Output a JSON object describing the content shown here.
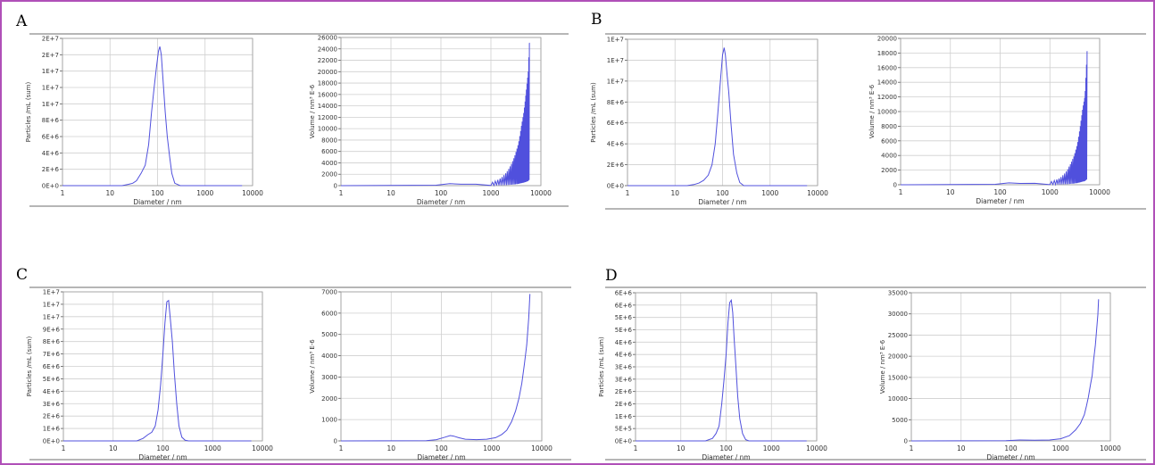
{
  "colors": {
    "frame": "#b050b8",
    "line": "#5050dd",
    "grid": "#cfcfcf",
    "rule": "#8a8a8a"
  },
  "panels": [
    {
      "letter": "A",
      "charts": [
        0,
        1
      ]
    },
    {
      "letter": "B",
      "charts": [
        2,
        3
      ]
    },
    {
      "letter": "C",
      "charts": [
        4,
        5
      ]
    },
    {
      "letter": "D",
      "charts": [
        6,
        7
      ]
    }
  ],
  "chart_data": [
    {
      "type": "line",
      "panel": "A",
      "xscale": "log",
      "xlabel": "Diameter / nm",
      "ylabel": "Particles /mL (sum)",
      "xticks": [
        "1",
        "10",
        "100",
        "1000",
        "10000"
      ],
      "yticks": [
        "0E+0",
        "2E+6",
        "4E+6",
        "6E+6",
        "8E+6",
        "1E+7",
        "1E+7",
        "1E+7",
        "2E+7",
        "2E+7"
      ],
      "ylim": [
        0,
        18000000
      ],
      "xlim": [
        1,
        6000
      ],
      "series": [
        {
          "x": [
            1,
            18,
            24,
            30,
            36,
            45,
            55,
            65,
            75,
            85,
            95,
            105,
            112,
            120,
            130,
            145,
            160,
            180,
            200,
            230,
            300,
            6000
          ],
          "y": [
            0,
            0,
            150000,
            300000,
            600000,
            1500000,
            2500000,
            5000000,
            9000000,
            12000000,
            14500000,
            16500000,
            17000000,
            16000000,
            13000000,
            9000000,
            6000000,
            3500000,
            1500000,
            300000,
            0,
            0
          ]
        }
      ]
    },
    {
      "type": "line",
      "panel": "A",
      "xscale": "log",
      "xlabel": "Diameter / nm",
      "ylabel": "Volume / nm³ E-6",
      "xticks": [
        "1",
        "10",
        "100",
        "1000",
        "10000"
      ],
      "yticks": [
        "0",
        "2000",
        "4000",
        "6000",
        "8000",
        "10000",
        "12000",
        "14000",
        "16000",
        "18000",
        "20000",
        "22000",
        "24000",
        "26000"
      ],
      "ylim": [
        0,
        26000
      ],
      "xlim": [
        1,
        6000
      ],
      "spiky": true,
      "base": [
        [
          1,
          0
        ],
        [
          80,
          80
        ],
        [
          150,
          350
        ],
        [
          250,
          250
        ],
        [
          500,
          250
        ],
        [
          1000,
          600
        ],
        [
          1500,
          1300
        ],
        [
          2000,
          2400
        ],
        [
          2500,
          3800
        ],
        [
          3000,
          5500
        ],
        [
          3500,
          7500
        ],
        [
          4000,
          10500
        ],
        [
          4500,
          13000
        ],
        [
          5000,
          16500
        ],
        [
          5500,
          20000
        ],
        [
          5800,
          25000
        ]
      ]
    },
    {
      "type": "line",
      "panel": "B",
      "xscale": "log",
      "xlabel": "Diameter / nm",
      "ylabel": "Particles /mL (sum)",
      "xticks": [
        "1",
        "10",
        "100",
        "1000",
        "10000"
      ],
      "yticks": [
        "0E+0",
        "2E+6",
        "4E+6",
        "6E+6",
        "8E+6",
        "1E+7",
        "1E+7",
        "1E+7"
      ],
      "ylim": [
        0,
        14000000
      ],
      "xlim": [
        1,
        6000
      ],
      "series": [
        {
          "x": [
            1,
            18,
            25,
            32,
            40,
            50,
            60,
            70,
            80,
            90,
            100,
            108,
            115,
            125,
            135,
            150,
            170,
            200,
            230,
            280,
            6000
          ],
          "y": [
            0,
            0,
            100000,
            250000,
            500000,
            1000000,
            2000000,
            4000000,
            7000000,
            10000000,
            12500000,
            13200000,
            12500000,
            10500000,
            9000000,
            6000000,
            3000000,
            1200000,
            300000,
            0,
            0
          ]
        }
      ]
    },
    {
      "type": "line",
      "panel": "B",
      "xscale": "log",
      "xlabel": "Diameter / nm",
      "ylabel": "Volume / nm³ E-6",
      "xticks": [
        "1",
        "10",
        "100",
        "1000",
        "10000"
      ],
      "yticks": [
        "0",
        "2000",
        "4000",
        "6000",
        "8000",
        "10000",
        "12000",
        "14000",
        "16000",
        "18000",
        "20000"
      ],
      "ylim": [
        0,
        20000
      ],
      "xlim": [
        1,
        6000
      ],
      "spiky": true,
      "base": [
        [
          1,
          0
        ],
        [
          80,
          60
        ],
        [
          150,
          250
        ],
        [
          250,
          180
        ],
        [
          500,
          200
        ],
        [
          1000,
          450
        ],
        [
          1500,
          900
        ],
        [
          2000,
          1700
        ],
        [
          2500,
          2800
        ],
        [
          3000,
          4000
        ],
        [
          3500,
          5600
        ],
        [
          4000,
          8000
        ],
        [
          4500,
          10500
        ],
        [
          5000,
          12200
        ],
        [
          5500,
          18200
        ]
      ]
    },
    {
      "type": "line",
      "panel": "C",
      "xscale": "log",
      "xlabel": "Diameter / nm",
      "ylabel": "Particles /mL (sum)",
      "xticks": [
        "1",
        "10",
        "100",
        "1000",
        "10000"
      ],
      "yticks": [
        "0E+0",
        "1E+6",
        "2E+6",
        "3E+6",
        "4E+6",
        "5E+6",
        "6E+6",
        "7E+6",
        "8E+6",
        "9E+6",
        "1E+7",
        "1E+7",
        "1E+7"
      ],
      "ylim": [
        0,
        12000000
      ],
      "xlim": [
        1,
        6000
      ],
      "series": [
        {
          "x": [
            1,
            30,
            40,
            50,
            60,
            70,
            80,
            90,
            100,
            110,
            120,
            130,
            140,
            155,
            170,
            190,
            210,
            240,
            280,
            330,
            6000
          ],
          "y": [
            0,
            0,
            200000,
            500000,
            700000,
            1200000,
            2500000,
            4500000,
            7000000,
            9500000,
            11200000,
            11300000,
            10000000,
            8000000,
            5500000,
            3000000,
            1200000,
            300000,
            50000,
            0,
            0
          ]
        }
      ]
    },
    {
      "type": "line",
      "panel": "C",
      "xscale": "log",
      "xlabel": "Diameter / nm",
      "ylabel": "Volume / nm³ E-6",
      "xticks": [
        "1",
        "10",
        "100",
        "1000",
        "10000"
      ],
      "yticks": [
        "0",
        "1000",
        "2000",
        "3000",
        "4000",
        "5000",
        "6000",
        "7000"
      ],
      "ylim": [
        0,
        7000
      ],
      "xlim": [
        1,
        6000
      ],
      "series": [
        {
          "x": [
            1,
            50,
            80,
            120,
            150,
            180,
            220,
            300,
            500,
            800,
            1200,
            1600,
            2000,
            2500,
            3000,
            3500,
            4000,
            4500,
            5000,
            5500,
            5800
          ],
          "y": [
            0,
            10,
            60,
            180,
            250,
            220,
            150,
            80,
            60,
            80,
            150,
            300,
            500,
            900,
            1400,
            2000,
            2700,
            3600,
            4500,
            5800,
            6900
          ]
        }
      ]
    },
    {
      "type": "line",
      "panel": "D",
      "xscale": "log",
      "xlabel": "Diameter / nm",
      "ylabel": "Particles /mL (sum)",
      "xticks": [
        "1",
        "10",
        "100",
        "1000",
        "10000"
      ],
      "yticks": [
        "0E+0",
        "5E+5",
        "1E+6",
        "2E+6",
        "2E+6",
        "3E+6",
        "3E+6",
        "4E+6",
        "4E+6",
        "5E+6",
        "5E+6",
        "6E+6",
        "6E+6"
      ],
      "ylim": [
        0,
        6000000
      ],
      "xlim": [
        1,
        6000
      ],
      "series": [
        {
          "x": [
            1,
            35,
            50,
            60,
            70,
            80,
            90,
            100,
            110,
            120,
            130,
            140,
            150,
            165,
            180,
            200,
            230,
            270,
            320,
            6000
          ],
          "y": [
            0,
            0,
            100000,
            300000,
            600000,
            1500000,
            2500000,
            3500000,
            4800000,
            5600000,
            5700000,
            5200000,
            4200000,
            3000000,
            1800000,
            900000,
            300000,
            50000,
            0,
            0
          ]
        }
      ]
    },
    {
      "type": "line",
      "panel": "D",
      "xscale": "log",
      "xlabel": "Diameter / nm",
      "ylabel": "Volume / nm³ E-6",
      "xticks": [
        "1",
        "10",
        "100",
        "1000",
        "10000"
      ],
      "yticks": [
        "0",
        "5000",
        "10000",
        "15000",
        "20000",
        "25000",
        "30000",
        "35000"
      ],
      "ylim": [
        0,
        34000
      ],
      "xlim": [
        1,
        6000
      ],
      "series": [
        {
          "x": [
            1,
            80,
            150,
            300,
            600,
            1000,
            1500,
            2000,
            2500,
            3000,
            3300,
            3600,
            4000,
            4300,
            4600,
            5000,
            5300,
            5600,
            5800
          ],
          "y": [
            0,
            50,
            200,
            150,
            200,
            500,
            1200,
            2500,
            4000,
            6000,
            8000,
            10000,
            13000,
            15000,
            18500,
            22000,
            25500,
            29000,
            32500
          ]
        }
      ]
    }
  ]
}
